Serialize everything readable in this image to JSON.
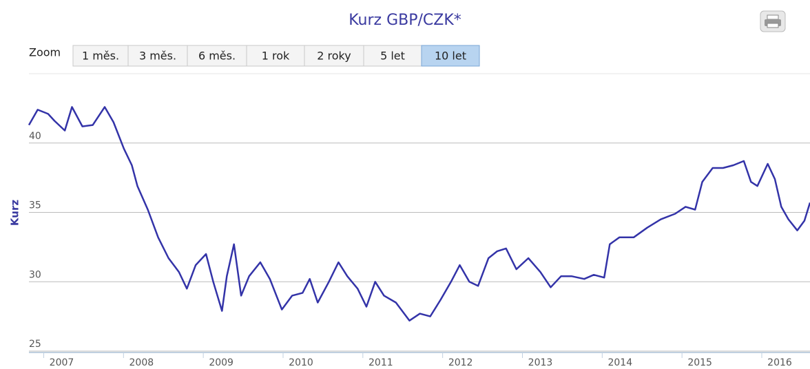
{
  "chart_data": {
    "type": "line",
    "title": "Kurz GBP/CZK*",
    "ylabel": "Kurz",
    "zoom": {
      "label": "Zoom",
      "buttons": [
        "1 měs.",
        "3 měs.",
        "6 měs.",
        "1 rok",
        "2 roky",
        "5 let",
        "10 let"
      ],
      "selected": 6
    },
    "x": [
      2006.59,
      2006.7,
      2006.83,
      2006.91,
      2007.04,
      2007.13,
      2007.26,
      2007.39,
      2007.54,
      2007.65,
      2007.78,
      2007.88,
      2007.95,
      2008.08,
      2008.21,
      2008.34,
      2008.47,
      2008.57,
      2008.68,
      2008.81,
      2008.9,
      2009.01,
      2009.07,
      2009.16,
      2009.25,
      2009.35,
      2009.49,
      2009.61,
      2009.76,
      2009.89,
      2010.02,
      2010.11,
      2010.21,
      2010.35,
      2010.47,
      2010.58,
      2010.71,
      2010.82,
      2010.93,
      2011.04,
      2011.19,
      2011.36,
      2011.49,
      2011.62,
      2011.75,
      2011.88,
      2011.99,
      2012.11,
      2012.22,
      2012.35,
      2012.46,
      2012.57,
      2012.7,
      2012.85,
      2013.0,
      2013.13,
      2013.26,
      2013.39,
      2013.55,
      2013.67,
      2013.8,
      2013.87,
      2013.99,
      2014.17,
      2014.34,
      2014.51,
      2014.69,
      2014.82,
      2014.94,
      2015.03,
      2015.16,
      2015.29,
      2015.42,
      2015.55,
      2015.64,
      2015.72,
      2015.85,
      2015.94,
      2016.02,
      2016.11,
      2016.22,
      2016.31,
      2016.38
    ],
    "series": [
      {
        "name": "Kurz",
        "color": "#3333a8",
        "values": [
          41.3,
          42.4,
          42.1,
          41.6,
          40.9,
          42.6,
          41.2,
          41.3,
          42.6,
          41.5,
          39.6,
          38.4,
          36.9,
          35.2,
          33.2,
          31.7,
          30.7,
          29.5,
          31.2,
          32.0,
          30.0,
          27.9,
          30.4,
          32.7,
          29.0,
          30.4,
          31.4,
          30.2,
          28.0,
          29.0,
          29.2,
          30.2,
          28.5,
          30.0,
          31.4,
          30.4,
          29.5,
          28.2,
          30.0,
          29.0,
          28.5,
          27.2,
          27.7,
          27.5,
          28.7,
          30.0,
          31.2,
          30.0,
          29.7,
          31.7,
          32.2,
          32.4,
          30.9,
          31.7,
          30.7,
          29.6,
          30.4,
          30.4,
          30.2,
          30.5,
          30.3,
          32.7,
          33.2,
          33.2,
          33.9,
          34.5,
          34.9,
          35.4,
          35.2,
          37.2,
          38.2,
          38.2,
          38.4,
          38.7,
          37.2,
          36.9,
          38.5,
          37.4,
          35.4,
          34.5,
          33.7,
          34.4,
          35.7
        ]
      }
    ],
    "xlim": [
      2006.59,
      2016.38
    ],
    "xticks": [
      2007,
      2008,
      2009,
      2010,
      2011,
      2012,
      2013,
      2014,
      2015,
      2016
    ],
    "ylim": [
      25,
      45
    ],
    "yticks": [
      25,
      30,
      35,
      40
    ],
    "grid": true
  }
}
